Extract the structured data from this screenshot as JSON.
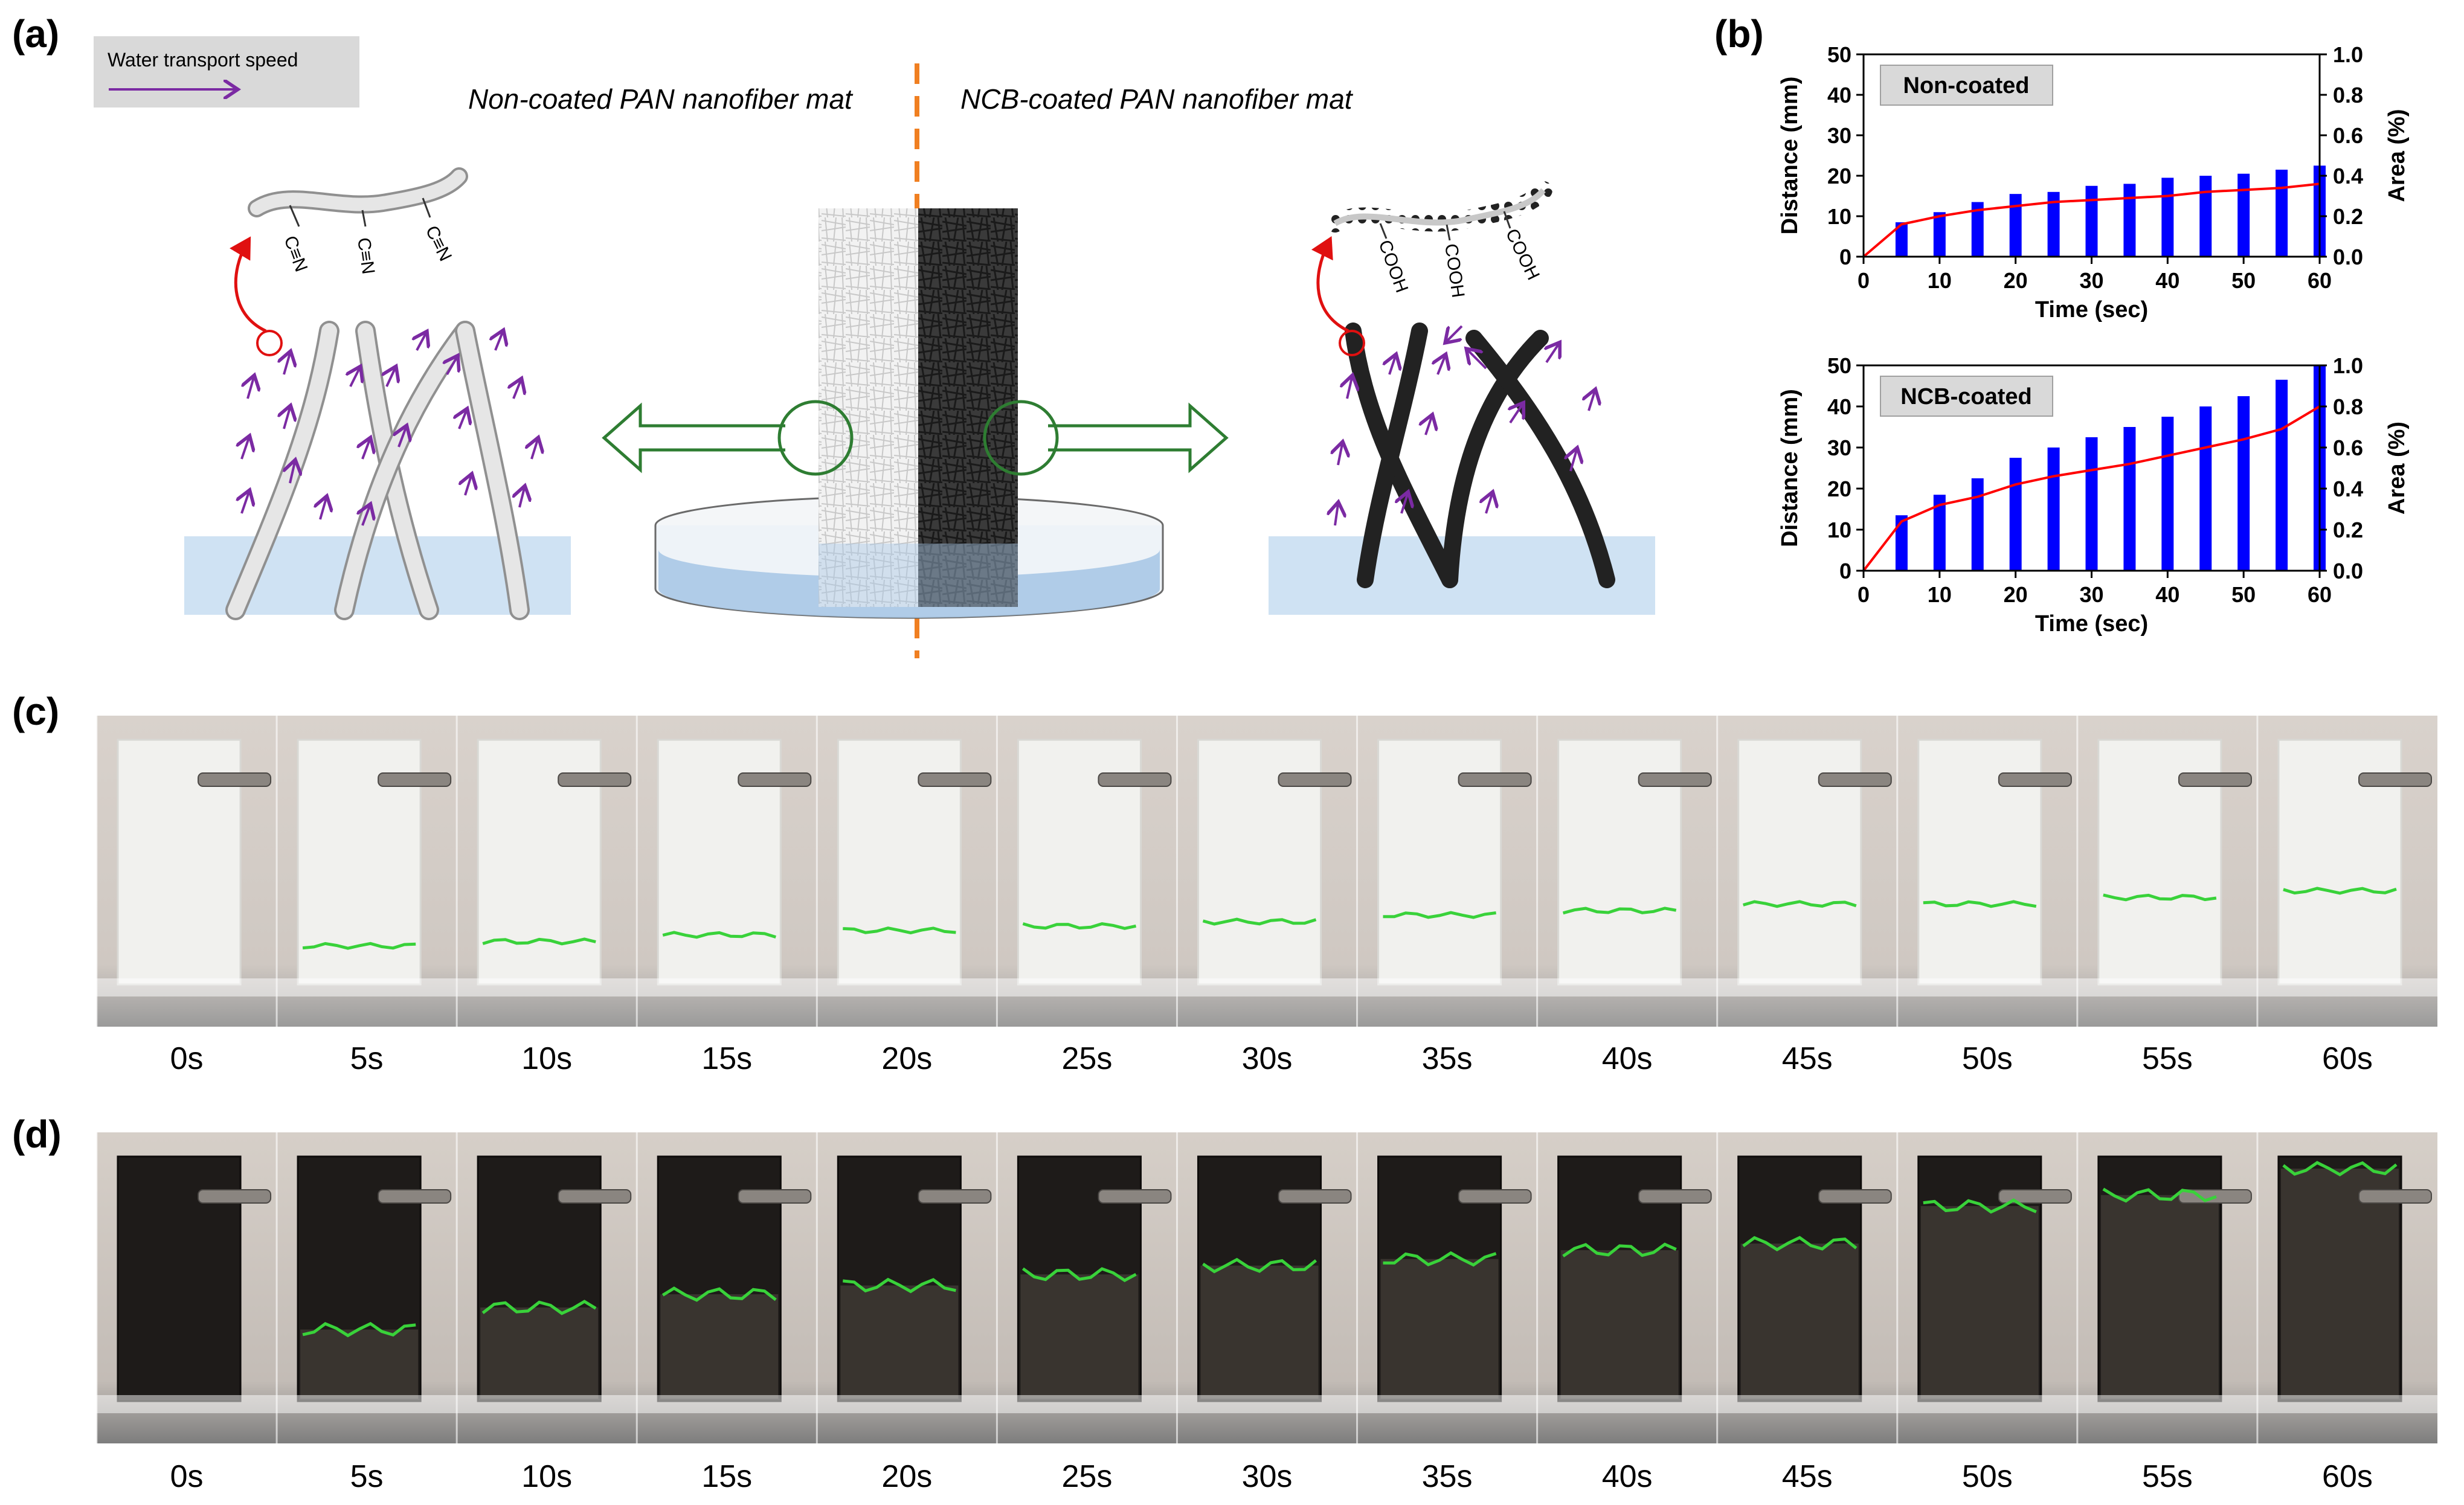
{
  "panel_labels": {
    "a": "(a)",
    "b": "(b)",
    "c": "(c)",
    "d": "(d)"
  },
  "legend": {
    "label": "Water transport speed"
  },
  "schematic": {
    "left_title": "Non-coated PAN nanofiber mat",
    "right_title": "NCB-coated PAN nanofiber mat",
    "left_group": "C≡N",
    "right_group": "COOH"
  },
  "colors": {
    "bar": "#0000ff",
    "line": "#ff0000",
    "water": "#cfe2f3",
    "arrow": "#7b2aa3",
    "green_arrow": "#2e7d32",
    "dashed": "#f07f21",
    "waterline": "#39d23a"
  },
  "chart_data": [
    {
      "type": "bar",
      "title": "Non-coated",
      "xlabel": "Time (sec)",
      "ylabel": "Distance (mm)",
      "y2label": "Area (%)",
      "xticks": [
        "0",
        "10",
        "20",
        "30",
        "40",
        "50",
        "60"
      ],
      "yticks": [
        "0",
        "10",
        "20",
        "30",
        "40",
        "50"
      ],
      "y2ticks": [
        "0.0",
        "0.2",
        "0.4",
        "0.6",
        "0.8",
        "1.0"
      ],
      "xlim": [
        0,
        60
      ],
      "ylim": [
        0,
        50
      ],
      "y2lim": [
        0,
        1.0
      ],
      "x": [
        5,
        10,
        15,
        20,
        25,
        30,
        35,
        40,
        45,
        50,
        55,
        60
      ],
      "series": [
        {
          "name": "Distance",
          "values": [
            8.5,
            11,
            13.5,
            15.5,
            16,
            17.5,
            18,
            19.5,
            20,
            20.5,
            21.5,
            22.5
          ]
        },
        {
          "name": "Area",
          "axis": "right",
          "x": [
            0,
            5,
            10,
            15,
            20,
            25,
            30,
            35,
            40,
            45,
            50,
            55,
            60
          ],
          "values": [
            0.0,
            0.16,
            0.2,
            0.23,
            0.25,
            0.27,
            0.28,
            0.29,
            0.3,
            0.32,
            0.33,
            0.34,
            0.36
          ]
        }
      ]
    },
    {
      "type": "bar",
      "title": "NCB-coated",
      "xlabel": "Time (sec)",
      "ylabel": "Distance (mm)",
      "y2label": "Area (%)",
      "xticks": [
        "0",
        "10",
        "20",
        "30",
        "40",
        "50",
        "60"
      ],
      "yticks": [
        "0",
        "10",
        "20",
        "30",
        "40",
        "50"
      ],
      "y2ticks": [
        "0.0",
        "0.2",
        "0.4",
        "0.6",
        "0.8",
        "1.0"
      ],
      "xlim": [
        0,
        60
      ],
      "ylim": [
        0,
        50
      ],
      "y2lim": [
        0,
        1.0
      ],
      "x": [
        5,
        10,
        15,
        20,
        25,
        30,
        35,
        40,
        45,
        50,
        55,
        60
      ],
      "series": [
        {
          "name": "Distance",
          "values": [
            13.5,
            18.5,
            22.5,
            27.5,
            30,
            32.5,
            35,
            37.5,
            40,
            42.5,
            46.5,
            50
          ]
        },
        {
          "name": "Area",
          "axis": "right",
          "x": [
            0,
            5,
            10,
            15,
            20,
            25,
            30,
            35,
            40,
            45,
            50,
            55,
            60
          ],
          "values": [
            0.0,
            0.24,
            0.32,
            0.36,
            0.42,
            0.46,
            0.49,
            0.52,
            0.56,
            0.6,
            0.64,
            0.69,
            0.8
          ]
        }
      ]
    }
  ],
  "time_labels": [
    "0s",
    "5s",
    "10s",
    "15s",
    "20s",
    "25s",
    "30s",
    "35s",
    "40s",
    "45s",
    "50s",
    "55s",
    "60s"
  ],
  "photo_strips": {
    "c": {
      "waterfront_level": [
        0,
        0.12,
        0.14,
        0.17,
        0.19,
        0.21,
        0.23,
        0.26,
        0.28,
        0.31,
        0.31,
        0.34,
        0.37
      ]
    },
    "d": {
      "waterfront_level": [
        0,
        0.27,
        0.37,
        0.43,
        0.47,
        0.52,
        0.56,
        0.59,
        0.63,
        0.66,
        0.83,
        0.88,
        1.0
      ]
    }
  }
}
